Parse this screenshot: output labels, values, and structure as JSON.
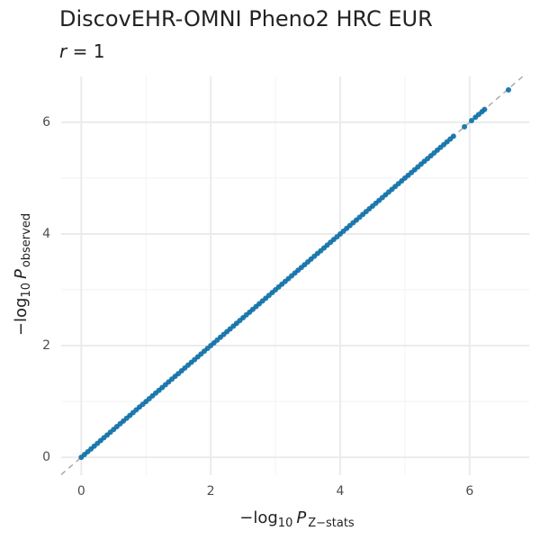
{
  "chart_data": {
    "type": "scatter",
    "title": "DiscovEHR-OMNI Pheno2 HRC EUR",
    "subtitle": {
      "var": "r",
      "rest": "= 1"
    },
    "x_label": {
      "prefix": "−log",
      "sub": "10",
      "var": "P",
      "subscript": "Z−stats"
    },
    "y_label": {
      "prefix": "−log",
      "sub": "10",
      "var": "P",
      "subscript": "observed"
    },
    "xlim": [
      -0.31,
      6.92
    ],
    "ylim": [
      -0.32,
      6.82
    ],
    "xticks": [
      0,
      2,
      4,
      6
    ],
    "yticks": [
      0,
      2,
      4,
      6
    ],
    "xminorticks": [
      1,
      3,
      5
    ],
    "yminorticks": [
      1,
      3,
      5
    ],
    "grid": true,
    "reference_line": true,
    "series": [
      {
        "color": "#0a6ea6",
        "x": [
          0,
          0.05,
          0.1,
          0.15,
          0.2,
          0.25,
          0.3,
          0.35,
          0.4,
          0.45,
          0.5,
          0.55,
          0.6,
          0.65,
          0.7,
          0.75,
          0.8,
          0.85,
          0.9,
          0.95,
          1,
          1.05,
          1.1,
          1.15,
          1.2,
          1.25,
          1.3,
          1.35,
          1.4,
          1.45,
          1.5,
          1.55,
          1.6,
          1.65,
          1.7,
          1.75,
          1.8,
          1.85,
          1.9,
          1.95,
          2,
          2.05,
          2.1,
          2.15,
          2.2,
          2.25,
          2.3,
          2.35,
          2.4,
          2.45,
          2.5,
          2.55,
          2.6,
          2.65,
          2.7,
          2.75,
          2.8,
          2.85,
          2.9,
          2.95,
          3,
          3.05,
          3.1,
          3.15,
          3.2,
          3.25,
          3.3,
          3.35,
          3.4,
          3.45,
          3.5,
          3.55,
          3.6,
          3.65,
          3.7,
          3.75,
          3.8,
          3.85,
          3.9,
          3.95,
          4,
          4.05,
          4.1,
          4.15,
          4.2,
          4.25,
          4.3,
          4.35,
          4.4,
          4.45,
          4.5,
          4.55,
          4.6,
          4.65,
          4.7,
          4.75,
          4.8,
          4.85,
          4.9,
          4.95,
          5,
          5.05,
          5.1,
          5.15,
          5.2,
          5.25,
          5.3,
          5.35,
          5.4,
          5.45,
          5.5,
          5.55,
          5.6,
          5.65,
          5.7,
          5.75,
          5.92,
          6.03,
          6.09,
          6.14,
          6.19,
          6.23,
          6.6
        ],
        "values": [
          0,
          0.05,
          0.1,
          0.15,
          0.2,
          0.25,
          0.3,
          0.35,
          0.4,
          0.45,
          0.5,
          0.55,
          0.6,
          0.65,
          0.7,
          0.75,
          0.8,
          0.85,
          0.9,
          0.95,
          1,
          1.05,
          1.1,
          1.15,
          1.2,
          1.25,
          1.3,
          1.35,
          1.4,
          1.45,
          1.5,
          1.55,
          1.6,
          1.65,
          1.7,
          1.75,
          1.8,
          1.85,
          1.9,
          1.95,
          2,
          2.05,
          2.1,
          2.15,
          2.2,
          2.25,
          2.3,
          2.35,
          2.4,
          2.45,
          2.5,
          2.55,
          2.6,
          2.65,
          2.7,
          2.75,
          2.8,
          2.85,
          2.9,
          2.95,
          3,
          3.05,
          3.1,
          3.15,
          3.2,
          3.25,
          3.3,
          3.35,
          3.4,
          3.45,
          3.5,
          3.55,
          3.6,
          3.65,
          3.7,
          3.75,
          3.8,
          3.85,
          3.9,
          3.95,
          4,
          4.05,
          4.1,
          4.15,
          4.2,
          4.25,
          4.3,
          4.35,
          4.4,
          4.45,
          4.5,
          4.55,
          4.6,
          4.65,
          4.7,
          4.75,
          4.8,
          4.85,
          4.9,
          4.95,
          5,
          5.05,
          5.1,
          5.15,
          5.2,
          5.25,
          5.3,
          5.35,
          5.4,
          5.45,
          5.5,
          5.55,
          5.6,
          5.65,
          5.7,
          5.75,
          5.92,
          6.03,
          6.09,
          6.14,
          6.19,
          6.23,
          6.58
        ]
      }
    ]
  }
}
